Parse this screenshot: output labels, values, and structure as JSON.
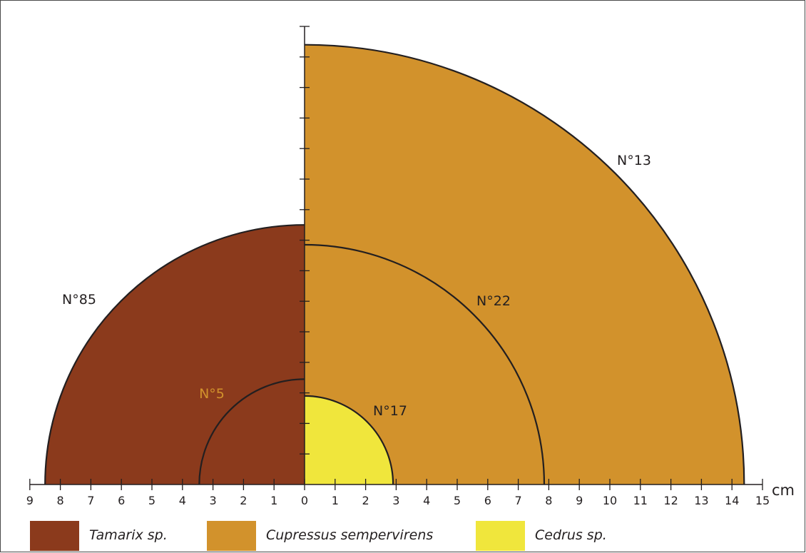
{
  "chart_data": {
    "type": "semicircle radius chart",
    "unit": "cm",
    "x_ticks_left": [
      "9",
      "8",
      "7",
      "6",
      "5",
      "4",
      "3",
      "2",
      "1"
    ],
    "x_ticks_right": [
      "0",
      "1",
      "2",
      "3",
      "4",
      "5",
      "6",
      "7",
      "8",
      "9",
      "10",
      "11",
      "12",
      "13",
      "14",
      "15"
    ],
    "y_tick_count": 15,
    "species": [
      {
        "name": "Tamarix sp.",
        "color": "#8b3a1c"
      },
      {
        "name": "Cupressus sempervirens",
        "color": "#d2922c"
      },
      {
        "name": "Cedrus sp.",
        "color": "#f0e63c"
      }
    ],
    "arcs": [
      {
        "label": "N°13",
        "species": "Cupressus sempervirens",
        "side": "right",
        "radius": 14.4,
        "filled": true,
        "label_color": "#231f20"
      },
      {
        "label": "N°85",
        "species": "Tamarix sp.",
        "side": "left",
        "radius": 8.5,
        "filled": true,
        "label_color": "#231f20"
      },
      {
        "label": "N°22",
        "species": "Cupressus sempervirens",
        "side": "right",
        "radius": 7.85,
        "filled": false,
        "label_color": "#231f20"
      },
      {
        "label": "N°5",
        "species": "Tamarix sp.",
        "side": "left",
        "radius": 3.45,
        "filled": false,
        "label_color": "#d2922c"
      },
      {
        "label": "N°17",
        "species": "Cedrus sp.",
        "side": "right",
        "radius": 2.9,
        "filled": true,
        "label_color": "#231f20"
      }
    ]
  }
}
